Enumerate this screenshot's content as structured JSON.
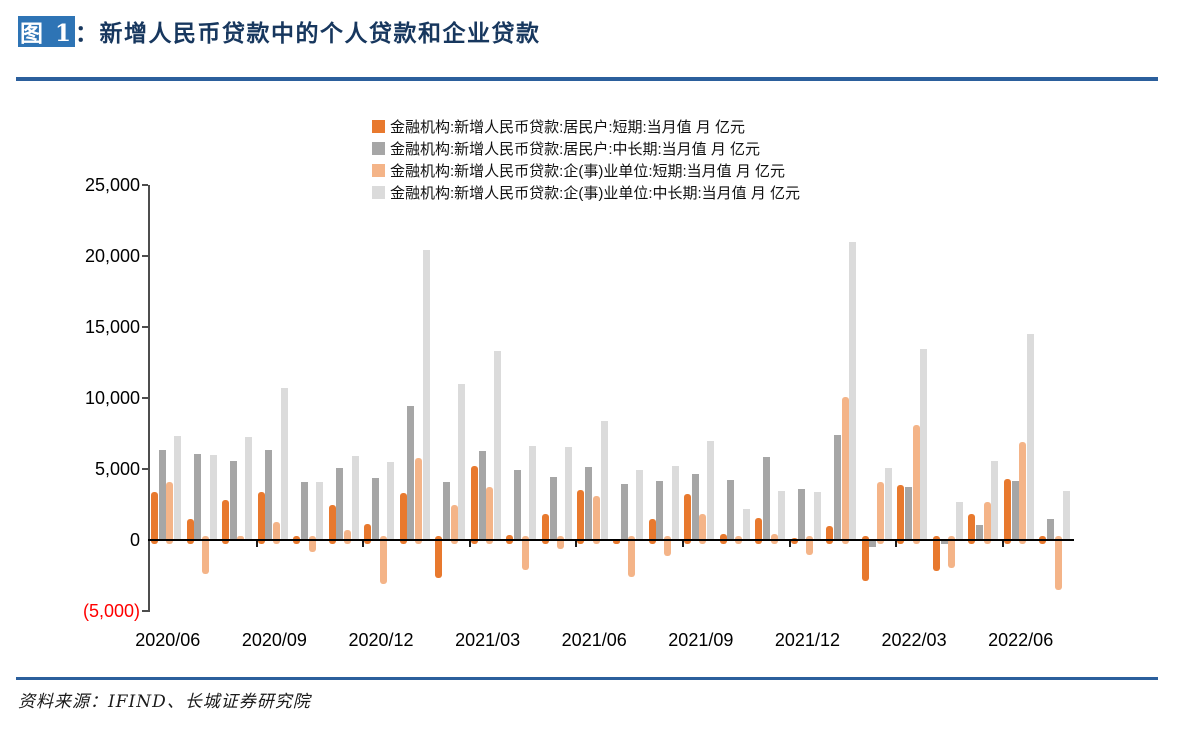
{
  "header": {
    "badge": "图 1",
    "colon": "：",
    "title": "新增人民币贷款中的个人贷款和企业贷款"
  },
  "footer": {
    "source": "资料来源：IFIND、长城证券研究院"
  },
  "colors": {
    "badge_blue": "#2E74B5",
    "title_navy": "#17375E",
    "rule_blue": "#2B5F9C",
    "negative_label_red": "#FF0000",
    "household_short_orange": "#E8792E",
    "household_mlt_gray": "#A6A6A6",
    "corporate_short_light_orange": "#F4B488",
    "corporate_mlt_light_gray": "#DBDBDB"
  },
  "chart_data": {
    "type": "bar",
    "title": "新增人民币贷款中的个人贷款和企业贷款",
    "unit": "亿元",
    "grid": false,
    "legend_position": "top",
    "ylim": [
      -5000,
      25000
    ],
    "y_axis_tick_labels": [
      "25,000",
      "20,000",
      "15,000",
      "10,000",
      "5,000",
      "0",
      "(5,000)"
    ],
    "x_axis_tick_labels": [
      "2020/06",
      "2020/09",
      "2020/12",
      "2021/03",
      "2021/06",
      "2021/09",
      "2021/12",
      "2022/03",
      "2022/06"
    ],
    "categories": [
      "2020/06",
      "2020/07",
      "2020/08",
      "2020/09",
      "2020/10",
      "2020/11",
      "2020/12",
      "2021/01",
      "2021/02",
      "2021/03",
      "2021/04",
      "2021/05",
      "2021/06",
      "2021/07",
      "2021/08",
      "2021/09",
      "2021/10",
      "2021/11",
      "2021/12",
      "2022/01",
      "2022/02",
      "2022/03",
      "2022/04",
      "2022/05",
      "2022/06",
      "2022/07"
    ],
    "series": [
      {
        "id": "household-short",
        "name": "金融机构:新增人民币贷款:居民户:短期:当月值 月 亿元",
        "color": "#E8792E",
        "rounded": true,
        "values": [
          3400,
          1510,
          2844,
          3394,
          272,
          2486,
          1142,
          3278,
          -2691,
          5242,
          365,
          1806,
          3500,
          85,
          1496,
          3219,
          426,
          1517,
          157,
          1006,
          -2911,
          3848,
          -2170,
          1840,
          4282,
          -269
        ]
      },
      {
        "id": "household-mlt",
        "name": "金融机构:新增人民币贷款:居民户:中长期:当月值 月 亿元",
        "color": "#A6A6A6",
        "rounded": false,
        "values": [
          6349,
          6067,
          5571,
          6362,
          4059,
          5049,
          4392,
          9448,
          4113,
          6239,
          4918,
          4426,
          5156,
          3974,
          4123,
          4667,
          4221,
          5821,
          3558,
          7424,
          -459,
          3735,
          -313,
          1047,
          4167,
          1486
        ]
      },
      {
        "id": "corporate-short",
        "name": "金融机构:新增人民币贷款:企(事)业单位:短期:当月值 月 亿元",
        "color": "#F4B488",
        "rounded": true,
        "values": [
          4051,
          -2421,
          -21,
          1274,
          -837,
          734,
          -3097,
          5755,
          2497,
          3748,
          -2147,
          -644,
          3091,
          -2577,
          -1149,
          1826,
          -288,
          410,
          -1054,
          10100,
          4111,
          8089,
          -1948,
          2642,
          6906,
          -3546
        ]
      },
      {
        "id": "corporate-mlt",
        "name": "金融机构:新增人民币贷款:企(事)业单位:中长期:当月值 月 亿元",
        "color": "#DBDBDB",
        "rounded": false,
        "values": [
          7348,
          5968,
          7252,
          10680,
          4113,
          5887,
          5500,
          20400,
          11000,
          13300,
          6605,
          6528,
          8367,
          4937,
          5215,
          6948,
          2190,
          3417,
          3393,
          21000,
          5052,
          13448,
          2652,
          5551,
          14497,
          3459
        ]
      }
    ]
  }
}
